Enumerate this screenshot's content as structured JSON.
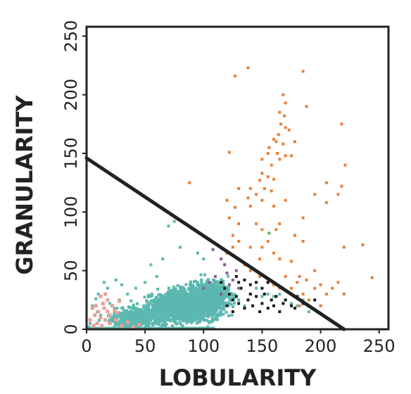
{
  "chart_data": {
    "type": "scatter",
    "xlabel": "LOBULARITY",
    "ylabel": "GRANULARITY",
    "xlim": [
      0,
      258
    ],
    "ylim": [
      0,
      258
    ],
    "xticks": [
      0,
      50,
      100,
      150,
      200,
      250
    ],
    "yticks": [
      0,
      50,
      100,
      150,
      200,
      250
    ],
    "grid": false,
    "legend": "none",
    "colors": {
      "orange": "#E8803A",
      "teal": "#5BB8B0",
      "pink": "#E8A098",
      "black": "#1a1a1a",
      "purple": "#8B5A9B",
      "green": "#5FAF5F",
      "line": "#222222"
    },
    "reference_line": {
      "x": [
        0,
        220
      ],
      "y": [
        146,
        0
      ]
    },
    "series": [
      {
        "color": "orange",
        "points": [
          [
            138,
            223
          ],
          [
            185,
            220
          ],
          [
            127,
            216
          ],
          [
            168,
            200
          ],
          [
            170,
            193
          ],
          [
            165,
            185
          ],
          [
            169,
            182
          ],
          [
            170,
            172
          ],
          [
            173,
            170
          ],
          [
            164,
            166
          ],
          [
            160,
            162
          ],
          [
            162,
            160
          ],
          [
            168,
            158
          ],
          [
            156,
            155
          ],
          [
            163,
            150
          ],
          [
            170,
            148
          ],
          [
            175,
            148
          ],
          [
            155,
            150
          ],
          [
            150,
            145
          ],
          [
            165,
            145
          ],
          [
            158,
            140
          ],
          [
            122,
            151
          ],
          [
            150,
            133
          ],
          [
            155,
            130
          ],
          [
            160,
            128
          ],
          [
            148,
            127
          ],
          [
            152,
            120
          ],
          [
            158,
            118
          ],
          [
            145,
            115
          ],
          [
            140,
            120
          ],
          [
            130,
            120
          ],
          [
            138,
            112
          ],
          [
            150,
            110
          ],
          [
            160,
            105
          ],
          [
            170,
            110
          ],
          [
            140,
            105
          ],
          [
            120,
            110
          ],
          [
            127,
            104
          ],
          [
            122,
            95
          ],
          [
            130,
            90
          ],
          [
            145,
            90
          ],
          [
            150,
            85
          ],
          [
            165,
            90
          ],
          [
            162,
            85
          ],
          [
            185,
            95
          ],
          [
            195,
            115
          ],
          [
            205,
            108
          ],
          [
            215,
            115
          ],
          [
            218,
            122
          ],
          [
            178,
            80
          ],
          [
            185,
            75
          ],
          [
            218,
            175
          ],
          [
            221,
            140
          ],
          [
            205,
            125
          ],
          [
            125,
            80
          ],
          [
            130,
            75
          ],
          [
            140,
            70
          ],
          [
            150,
            70
          ],
          [
            155,
            75
          ],
          [
            160,
            65
          ],
          [
            165,
            60
          ],
          [
            125,
            70
          ],
          [
            120,
            65
          ],
          [
            130,
            60
          ],
          [
            118,
            55
          ],
          [
            170,
            45
          ],
          [
            180,
            40
          ],
          [
            188,
            42
          ],
          [
            195,
            35
          ],
          [
            200,
            38
          ],
          [
            205,
            30
          ],
          [
            210,
            35
          ],
          [
            215,
            40
          ],
          [
            220,
            30
          ],
          [
            185,
            30
          ],
          [
            190,
            25
          ],
          [
            182,
            20
          ],
          [
            200,
            20
          ],
          [
            236,
            72
          ],
          [
            244,
            44
          ],
          [
            220,
            70
          ],
          [
            155,
            40
          ],
          [
            160,
            38
          ],
          [
            148,
            45
          ],
          [
            165,
            35
          ],
          [
            175,
            35
          ],
          [
            195,
            50
          ],
          [
            182,
            45
          ],
          [
            140,
            50
          ],
          [
            135,
            55
          ],
          [
            148,
            60
          ],
          [
            175,
            58
          ],
          [
            88,
            125
          ],
          [
            178,
            160
          ],
          [
            188,
            190
          ],
          [
            166,
            175
          ]
        ]
      },
      {
        "color": "black",
        "points": [
          [
            115,
            40
          ],
          [
            118,
            35
          ],
          [
            122,
            30
          ],
          [
            125,
            25
          ],
          [
            128,
            28
          ],
          [
            130,
            22
          ],
          [
            132,
            35
          ],
          [
            135,
            18
          ],
          [
            138,
            25
          ],
          [
            140,
            30
          ],
          [
            142,
            20
          ],
          [
            145,
            28
          ],
          [
            148,
            15
          ],
          [
            150,
            22
          ],
          [
            152,
            30
          ],
          [
            155,
            18
          ],
          [
            158,
            25
          ],
          [
            160,
            20
          ],
          [
            162,
            28
          ],
          [
            165,
            15
          ],
          [
            168,
            22
          ],
          [
            170,
            25
          ],
          [
            175,
            20
          ],
          [
            178,
            18
          ],
          [
            180,
            28
          ],
          [
            185,
            22
          ],
          [
            130,
            40
          ],
          [
            135,
            42
          ],
          [
            140,
            38
          ],
          [
            150,
            35
          ],
          [
            155,
            40
          ],
          [
            120,
            20
          ],
          [
            125,
            15
          ],
          [
            128,
            45
          ],
          [
            190,
            20
          ],
          [
            195,
            25
          ],
          [
            175,
            30
          ],
          [
            145,
            40
          ]
        ]
      },
      {
        "color": "pink",
        "points": [
          [
            3,
            8
          ],
          [
            5,
            18
          ],
          [
            7,
            12
          ],
          [
            8,
            20
          ],
          [
            10,
            15
          ],
          [
            12,
            10
          ],
          [
            14,
            22
          ],
          [
            15,
            18
          ],
          [
            16,
            8
          ],
          [
            18,
            15
          ],
          [
            20,
            12
          ],
          [
            22,
            20
          ],
          [
            24,
            16
          ],
          [
            26,
            14
          ],
          [
            28,
            24
          ],
          [
            9,
            5
          ],
          [
            12,
            28
          ],
          [
            16,
            30
          ],
          [
            20,
            5
          ],
          [
            25,
            8
          ],
          [
            30,
            3
          ],
          [
            35,
            6
          ],
          [
            40,
            2
          ],
          [
            45,
            4
          ],
          [
            18,
            25
          ],
          [
            6,
            3
          ],
          [
            13,
            3
          ]
        ]
      },
      {
        "color": "purple",
        "points": [
          [
            108,
            68
          ],
          [
            112,
            72
          ],
          [
            115,
            60
          ],
          [
            118,
            55
          ],
          [
            120,
            48
          ],
          [
            125,
            42
          ],
          [
            110,
            45
          ],
          [
            105,
            40
          ],
          [
            130,
            35
          ],
          [
            115,
            30
          ],
          [
            100,
            35
          ],
          [
            122,
            38
          ],
          [
            128,
            50
          ]
        ]
      },
      {
        "color": "green",
        "points": [
          [
            156,
            82
          ]
        ]
      }
    ],
    "teal_cloud": {
      "color": "teal",
      "points_note": "",
      "clusters": [
        {
          "cx": 85,
          "cy": 20,
          "sx": 22,
          "sy": 10,
          "n": 2200
        },
        {
          "cx": 105,
          "cy": 28,
          "sx": 15,
          "sy": 12,
          "n": 800
        },
        {
          "cx": 45,
          "cy": 10,
          "sx": 20,
          "sy": 8,
          "n": 500
        }
      ],
      "extra_points": [
        [
          75,
          92
        ],
        [
          70,
          88
        ],
        [
          95,
          65
        ],
        [
          100,
          60
        ],
        [
          80,
          70
        ],
        [
          65,
          60
        ],
        [
          55,
          55
        ],
        [
          60,
          45
        ],
        [
          50,
          40
        ],
        [
          42,
          35
        ],
        [
          35,
          30
        ],
        [
          28,
          25
        ],
        [
          20,
          22
        ],
        [
          15,
          40
        ],
        [
          18,
          35
        ],
        [
          25,
          42
        ],
        [
          30,
          38
        ],
        [
          10,
          30
        ],
        [
          8,
          26
        ],
        [
          5,
          20
        ],
        [
          12,
          12
        ],
        [
          3,
          5
        ],
        [
          2,
          2
        ],
        [
          140,
          30
        ],
        [
          160,
          28
        ],
        [
          170,
          25
        ],
        [
          175,
          22
        ],
        [
          180,
          20
        ],
        [
          190,
          15
        ],
        [
          185,
          25
        ],
        [
          145,
          35
        ],
        [
          150,
          28
        ],
        [
          155,
          30
        ],
        [
          165,
          30
        ],
        [
          200,
          20
        ],
        [
          120,
          30
        ],
        [
          130,
          25
        ],
        [
          135,
          20
        ]
      ]
    }
  }
}
